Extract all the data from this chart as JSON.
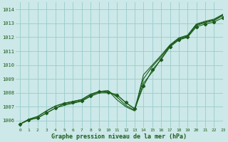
{
  "xlabel": "Graphe pression niveau de la mer (hPa)",
  "xlim": [
    -0.5,
    23
  ],
  "ylim": [
    1005.5,
    1014.5
  ],
  "yticks": [
    1006,
    1007,
    1008,
    1009,
    1010,
    1011,
    1012,
    1013,
    1014
  ],
  "xticks": [
    0,
    1,
    2,
    3,
    4,
    5,
    6,
    7,
    8,
    9,
    10,
    11,
    12,
    13,
    14,
    15,
    16,
    17,
    18,
    19,
    20,
    21,
    22,
    23
  ],
  "bg_color": "#cce8e8",
  "grid_color": "#99cccc",
  "line_color": "#1a5c1a",
  "line1_y": [
    1005.75,
    1006.05,
    1006.2,
    1006.55,
    1006.9,
    1007.2,
    1007.3,
    1007.45,
    1007.8,
    1008.1,
    1008.05,
    1007.85,
    1007.3,
    1006.85,
    1008.5,
    1009.65,
    1010.4,
    1011.3,
    1011.8,
    1012.0,
    1012.75,
    1012.95,
    1013.1,
    1013.4
  ],
  "line2_y": [
    1005.75,
    1006.1,
    1006.3,
    1006.7,
    1007.05,
    1007.25,
    1007.38,
    1007.52,
    1007.9,
    1008.1,
    1008.15,
    1007.7,
    1007.1,
    1006.75,
    1008.7,
    1009.5,
    1010.45,
    1011.35,
    1011.85,
    1012.05,
    1012.85,
    1013.05,
    1013.2,
    1013.55
  ],
  "line3_y": [
    1005.75,
    1006.05,
    1006.2,
    1006.55,
    1006.9,
    1007.1,
    1007.25,
    1007.4,
    1007.75,
    1008.0,
    1008.0,
    1007.85,
    1007.3,
    1006.85,
    1009.0,
    1009.9,
    1010.6,
    1011.4,
    1011.9,
    1012.1,
    1012.9,
    1013.1,
    1013.25,
    1013.6
  ],
  "line4_y": [
    1005.75,
    1006.1,
    1006.3,
    1006.7,
    1007.05,
    1007.25,
    1007.38,
    1007.52,
    1007.9,
    1008.1,
    1008.15,
    1007.5,
    1007.0,
    1006.7,
    1009.3,
    1010.0,
    1010.7,
    1011.45,
    1011.95,
    1012.15,
    1012.95,
    1013.15,
    1013.3,
    1013.65
  ],
  "marker_y": [
    1005.75,
    1006.05,
    1006.2,
    1006.55,
    1006.9,
    1007.2,
    1007.3,
    1007.45,
    1007.8,
    1008.1,
    1008.05,
    1007.85,
    1007.3,
    1006.85,
    1008.5,
    1009.65,
    1010.4,
    1011.3,
    1011.8,
    1012.0,
    1012.75,
    1012.95,
    1013.1,
    1013.4
  ]
}
